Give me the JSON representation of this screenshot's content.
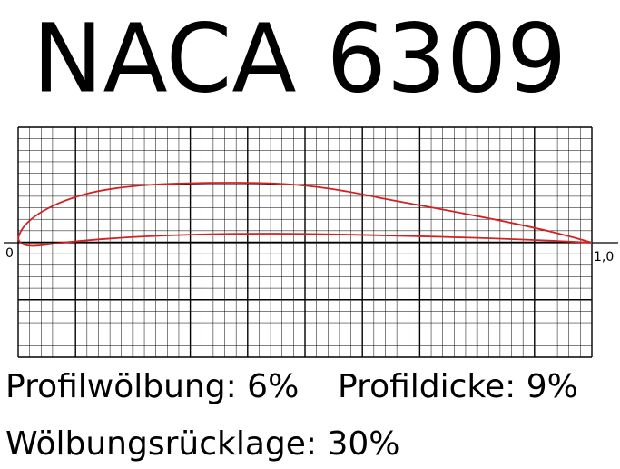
{
  "title": "NACA 6309",
  "axis": {
    "start_label": "0",
    "end_label": "1,0"
  },
  "parameters": {
    "camber": "Profilwölbung: 6%",
    "thickness": "Profildicke: 9%",
    "camber_position": "Wölbungsrücklage: 30%"
  }
}
